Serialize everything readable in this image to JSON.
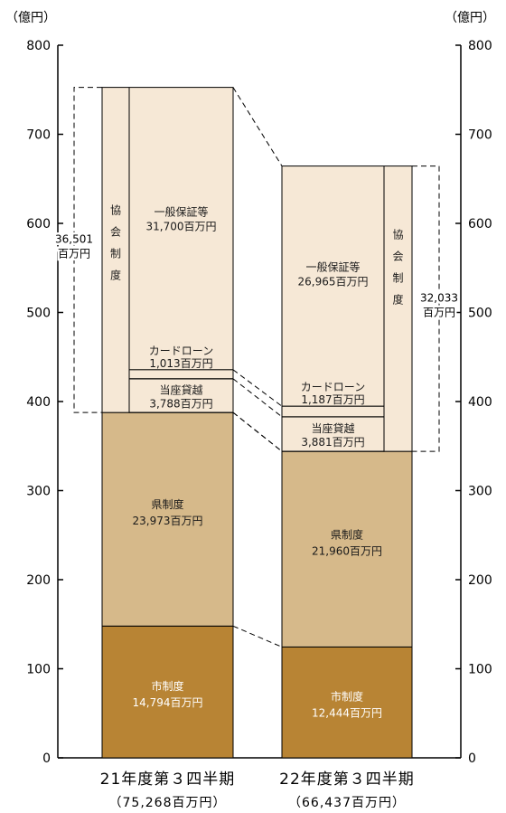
{
  "chart_data": {
    "type": "bar",
    "stacked": true,
    "unit_left": "（億円）",
    "unit_right": "（億円）",
    "ylim": [
      0,
      800
    ],
    "yticks": [
      "0",
      "100",
      "200",
      "300",
      "400",
      "500",
      "600",
      "700",
      "800"
    ],
    "categories": [
      {
        "label": "21年度第３四半期",
        "total": "（75,268百万円）"
      },
      {
        "label": "22年度第３四半期",
        "total": "（66,437百万円）"
      }
    ],
    "colors": {
      "shi": "#b88434",
      "ken": "#d6b98a",
      "kyokai": "#f6e8d6",
      "edge": "#000000"
    },
    "series": [
      {
        "key": "shi",
        "name_label": "市制度",
        "values": [
          147.94,
          124.44
        ],
        "value_labels": [
          "14,794百万円",
          "12,444百万円"
        ]
      },
      {
        "key": "ken",
        "name_label": "県制度",
        "values": [
          239.73,
          219.6
        ],
        "value_labels": [
          "23,973百万円",
          "21,960百万円"
        ]
      },
      {
        "key": "touza",
        "name_label": "当座貸越",
        "values": [
          37.88,
          38.81
        ],
        "value_labels": [
          "3,788百万円",
          "3,881百万円"
        ]
      },
      {
        "key": "card",
        "name_label": "カードローン",
        "values": [
          10.13,
          11.87
        ],
        "value_labels": [
          "1,013百万円",
          "1,187百万円"
        ]
      },
      {
        "key": "ippan",
        "name_label": "一般保証等",
        "values": [
          317.0,
          269.65
        ],
        "value_labels": [
          "31,700百万円",
          "26,965百万円"
        ]
      }
    ],
    "kyokai": {
      "label_chars": [
        "協",
        "会",
        "制",
        "度"
      ],
      "totals": [
        "36,501百万円",
        "32,033百万円"
      ]
    }
  }
}
